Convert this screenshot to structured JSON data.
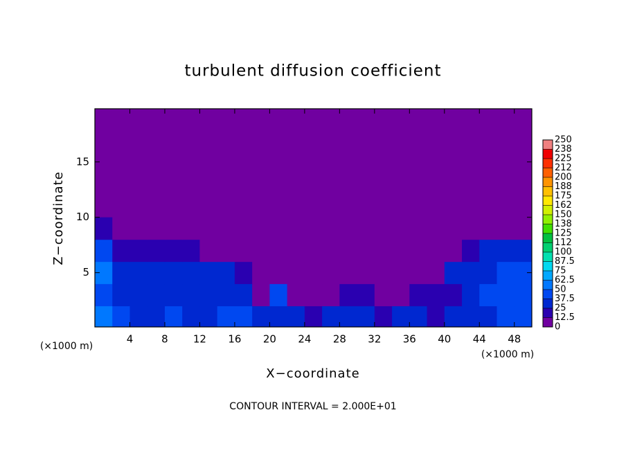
{
  "chart_data": {
    "type": "heatmap",
    "title": "turbulent diffusion coefficient",
    "xlabel": "X−coordinate",
    "ylabel": "Z−coordinate",
    "x_unit_label": "(×1000 m)",
    "footnote": "CONTOUR INTERVAL = 2.000E+01",
    "xlim": [
      0,
      50
    ],
    "ylim": [
      0.1,
      19.8
    ],
    "xticks": [
      4,
      8,
      12,
      16,
      20,
      24,
      28,
      32,
      36,
      40,
      44,
      48
    ],
    "yticks": [
      5,
      10,
      15
    ],
    "x_edges": [
      0,
      2,
      4,
      6,
      8,
      10,
      12,
      14,
      16,
      18,
      20,
      22,
      24,
      26,
      28,
      30,
      32,
      34,
      36,
      38,
      40,
      42,
      44,
      46,
      48,
      50
    ],
    "y_edges": [
      0,
      2,
      4,
      6,
      8,
      10
    ],
    "values": [
      [
        50,
        40,
        35,
        35,
        40,
        35,
        35,
        40,
        40,
        35,
        30,
        25,
        20,
        30,
        25,
        30,
        20,
        25,
        30,
        20,
        30,
        30,
        35,
        40,
        45
      ],
      [
        45,
        35,
        35,
        30,
        30,
        30,
        30,
        30,
        25,
        10,
        40,
        10,
        5,
        5,
        15,
        20,
        5,
        10,
        15,
        15,
        20,
        30,
        40,
        40,
        45
      ],
      [
        50,
        35,
        30,
        30,
        30,
        25,
        30,
        30,
        20,
        10,
        5,
        5,
        0,
        0,
        0,
        0,
        0,
        5,
        5,
        10,
        25,
        30,
        35,
        40,
        45
      ],
      [
        40,
        20,
        15,
        20,
        20,
        15,
        10,
        5,
        0,
        0,
        0,
        0,
        0,
        0,
        0,
        0,
        0,
        0,
        0,
        0,
        5,
        15,
        25,
        30,
        35
      ],
      [
        20,
        0,
        0,
        0,
        0,
        0,
        0,
        0,
        0,
        0,
        0,
        0,
        0,
        0,
        0,
        0,
        0,
        0,
        0,
        0,
        0,
        0,
        0,
        5,
        10
      ]
    ],
    "colorbar": {
      "ticks": [
        0,
        12.5,
        25,
        37.5,
        50,
        62.5,
        75,
        87.5,
        100,
        {
          "value": 112.5,
          "label": "112"
        },
        125,
        {
          "value": 137.5,
          "label": "138"
        },
        150,
        {
          "value": 162.5,
          "label": "162"
        },
        175,
        {
          "value": 187.5,
          "label": "188"
        },
        200,
        {
          "value": 212.5,
          "label": "212"
        },
        225,
        {
          "value": 237.5,
          "label": "238"
        },
        250
      ],
      "colors": [
        "#7000a0",
        "#2a00b0",
        "#0028d0",
        "#0048f0",
        "#0078ff",
        "#00a8ff",
        "#00d8f0",
        "#00e0b0",
        "#00d070",
        "#00c040",
        "#40e000",
        "#90f000",
        "#d0f000",
        "#ffe800",
        "#ffc000",
        "#ff9400",
        "#ff6000",
        "#ff3000",
        "#f00000",
        "#f08080"
      ]
    }
  }
}
